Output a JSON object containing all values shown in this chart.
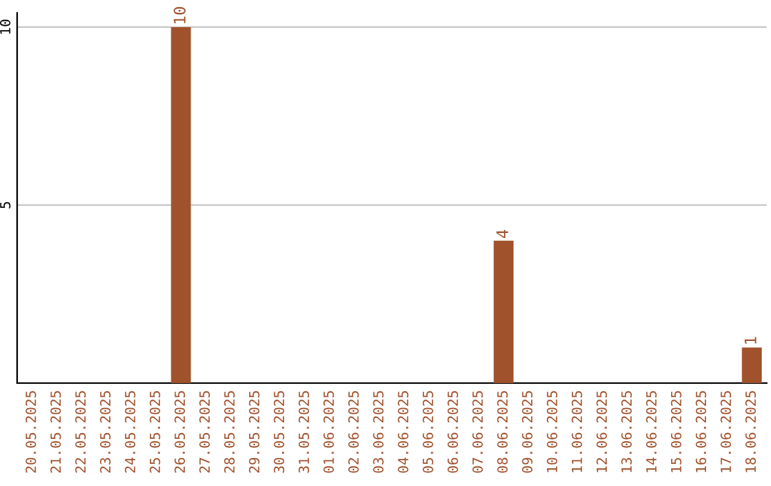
{
  "chart_data": {
    "type": "bar",
    "categories": [
      "20.05.2025",
      "21.05.2025",
      "22.05.2025",
      "23.05.2025",
      "24.05.2025",
      "25.05.2025",
      "26.05.2025",
      "27.05.2025",
      "28.05.2025",
      "29.05.2025",
      "30.05.2025",
      "31.05.2025",
      "01.06.2025",
      "02.06.2025",
      "03.06.2025",
      "04.06.2025",
      "05.06.2025",
      "06.06.2025",
      "07.06.2025",
      "08.06.2025",
      "09.06.2025",
      "10.06.2025",
      "11.06.2025",
      "12.06.2025",
      "13.06.2025",
      "14.06.2025",
      "15.06.2025",
      "16.06.2025",
      "17.06.2025",
      "18.06.2025"
    ],
    "values": [
      0,
      0,
      0,
      0,
      0,
      0,
      10,
      0,
      0,
      0,
      0,
      0,
      0,
      0,
      0,
      0,
      0,
      0,
      0,
      4,
      0,
      0,
      0,
      0,
      0,
      0,
      0,
      0,
      0,
      1
    ],
    "value_labels": [
      null,
      null,
      null,
      null,
      null,
      null,
      "10",
      null,
      null,
      null,
      null,
      null,
      null,
      null,
      null,
      null,
      null,
      null,
      null,
      "4",
      null,
      null,
      null,
      null,
      null,
      null,
      null,
      null,
      null,
      "1"
    ],
    "color": "#a0522d",
    "ylim": [
      0,
      10.4
    ],
    "yticks": [
      5,
      10
    ],
    "grid": "y"
  }
}
